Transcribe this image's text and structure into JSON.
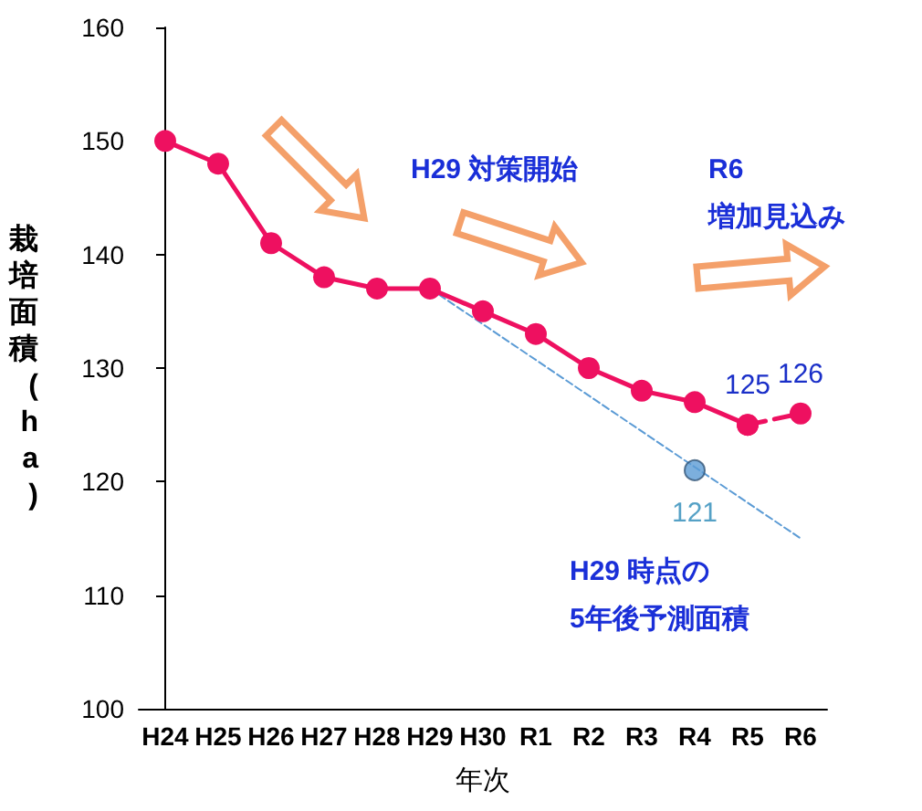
{
  "chart_data": {
    "type": "line",
    "xlabel": "年次",
    "ylabel": "栽培面積(ha)",
    "categories": [
      "H24",
      "H25",
      "H26",
      "H27",
      "H28",
      "H29",
      "H30",
      "R1",
      "R2",
      "R3",
      "R4",
      "R5",
      "R6"
    ],
    "series": [
      {
        "color": "#ee1060",
        "values": [
          150,
          148,
          141,
          138,
          137,
          137,
          135,
          133,
          130,
          128,
          127,
          125,
          null
        ],
        "marker": "circle",
        "line_style": "solid"
      },
      {
        "color": "#ee1060",
        "x": [
          "R5",
          "R6"
        ],
        "values": [
          125,
          126
        ],
        "marker": "circle",
        "line_style": "dashed",
        "value_labels": [
          "125",
          "126"
        ]
      },
      {
        "type": "line",
        "color": "#5b9bd5",
        "x": [
          "H29",
          "R6"
        ],
        "values": [
          137,
          115
        ],
        "marker": "none",
        "line_style": "dashed"
      },
      {
        "type": "scatter",
        "color": "#5b9bd5",
        "x": [
          "R4"
        ],
        "values": [
          121
        ],
        "marker": "circle",
        "value_labels": [
          "121"
        ]
      }
    ],
    "ylim": [
      100,
      160
    ],
    "yticks": [
      100,
      110,
      120,
      130,
      140,
      150,
      160
    ],
    "grid": false,
    "annotations": [
      "H29 対策開始",
      "R6\n増加見込み",
      "H29 時点の\n5年後予測面積"
    ]
  }
}
